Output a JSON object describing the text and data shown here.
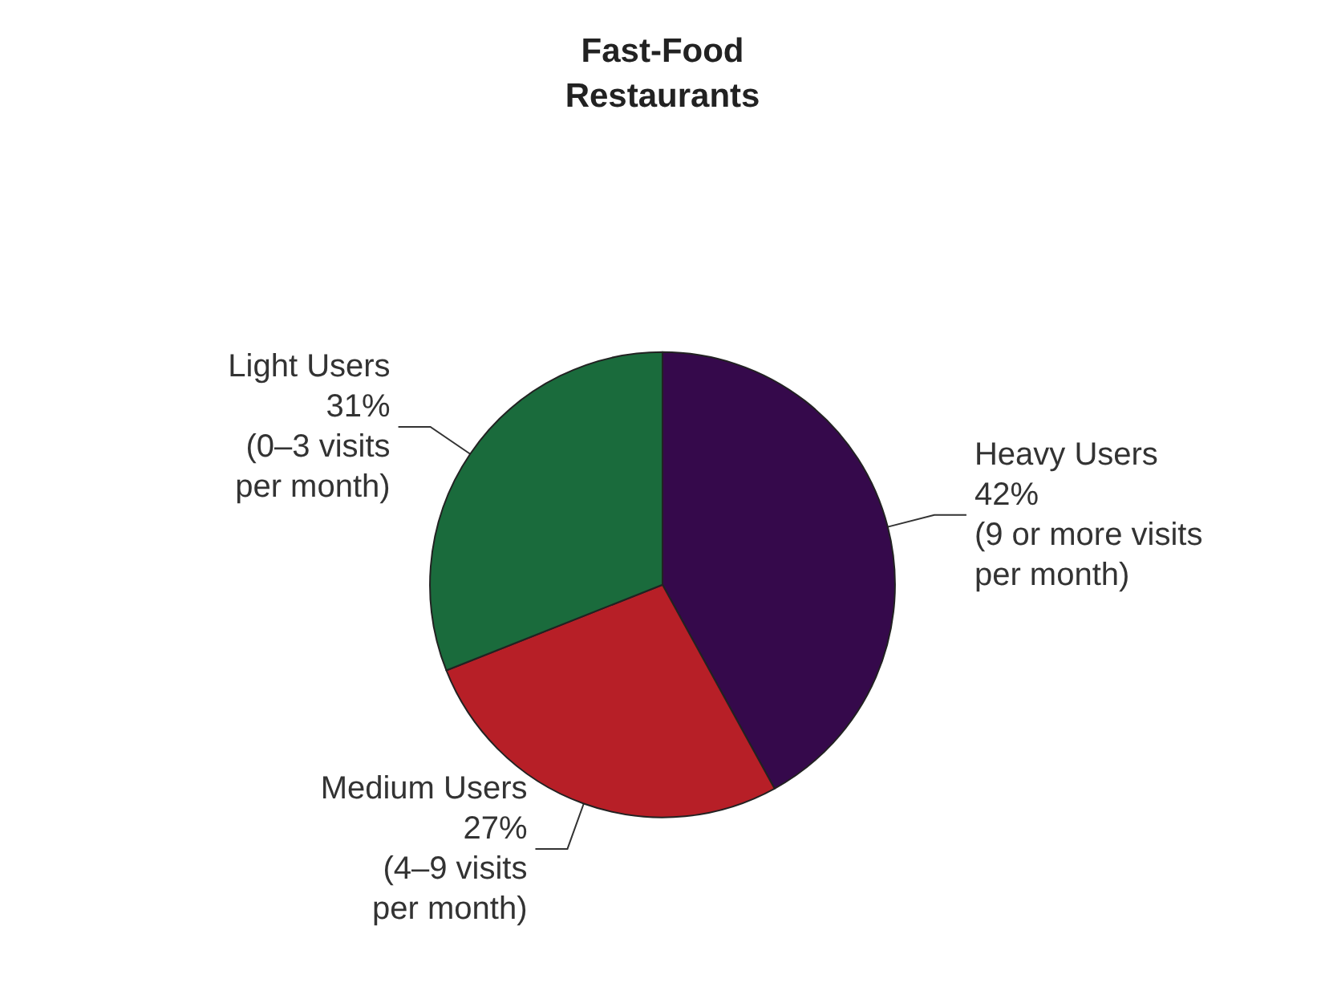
{
  "chart_data": {
    "type": "pie",
    "title": "Fast-Food\nRestaurants",
    "categories": [
      "Heavy Users",
      "Medium Users",
      "Light Users"
    ],
    "values": [
      42,
      27,
      31
    ],
    "colors": [
      "#35094b",
      "#b71f27",
      "#1a6b3c"
    ],
    "value_labels": [
      "42%\n(9 or more visits\nper month)",
      "27%\n(4–9 visits\nper month)",
      "31%\n(0–3 visits\nper month)"
    ],
    "legend": false
  }
}
